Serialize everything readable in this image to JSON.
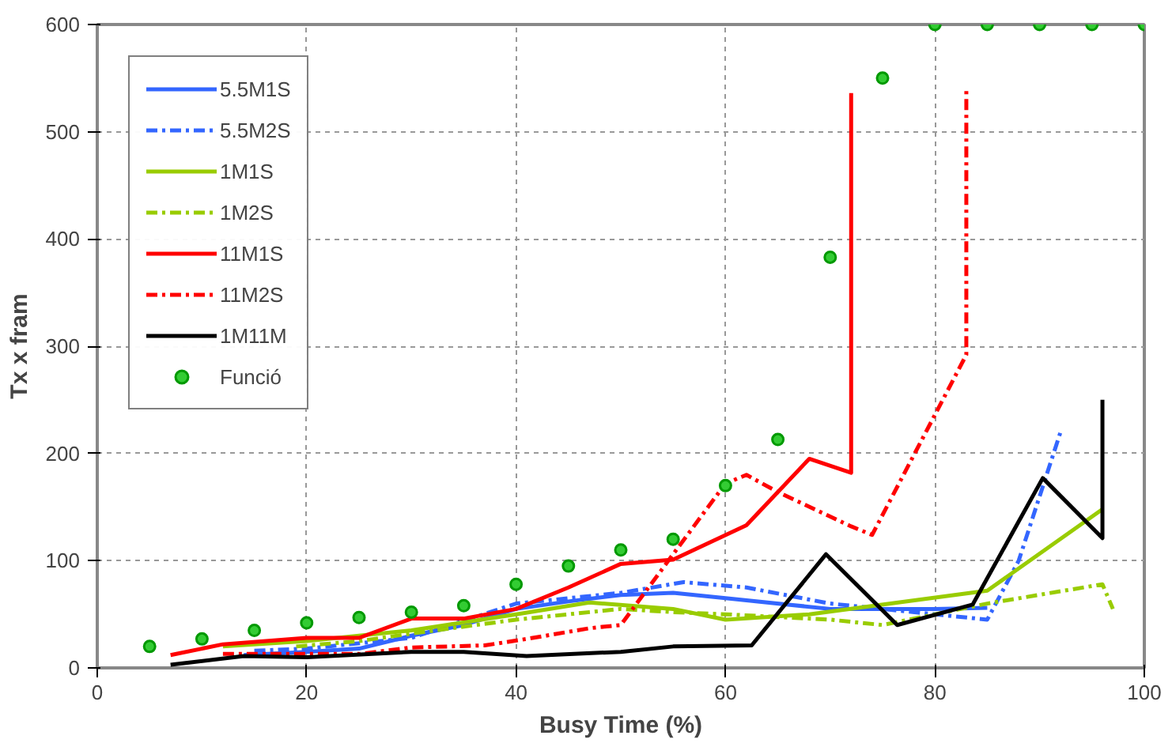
{
  "chart_data": {
    "type": "line",
    "xlabel": "Busy Time (%)",
    "ylabel": "Tx x fram",
    "xlim": [
      0,
      100
    ],
    "ylim": [
      0,
      600
    ],
    "xticks": [
      0,
      20,
      40,
      60,
      80,
      100
    ],
    "yticks": [
      0,
      100,
      200,
      300,
      400,
      500,
      600
    ],
    "grid": true,
    "legend": "top left",
    "series": [
      {
        "name": "5.5M1S",
        "color": "#3366ff",
        "line_style": "solid",
        "x": [
          14,
          20,
          25,
          30,
          35,
          40,
          45,
          50,
          55,
          60,
          70,
          80,
          85
        ],
        "values": [
          12,
          15,
          18,
          30,
          40,
          55,
          62,
          68,
          70,
          65,
          55,
          55,
          56
        ]
      },
      {
        "name": "5.5M2S",
        "color": "#3366ff",
        "line_style": "dashdot",
        "x": [
          15,
          20,
          30,
          40,
          50,
          56,
          62,
          70,
          80,
          85,
          88,
          92
        ],
        "values": [
          16,
          18,
          28,
          60,
          70,
          80,
          75,
          60,
          50,
          45,
          100,
          220
        ]
      },
      {
        "name": "1M1S",
        "color": "#99cc00",
        "line_style": "solid",
        "x": [
          12,
          20,
          30,
          40,
          47,
          55,
          60,
          68,
          85,
          96
        ],
        "values": [
          20,
          25,
          35,
          50,
          61,
          55,
          45,
          50,
          72,
          148
        ]
      },
      {
        "name": "1M2S",
        "color": "#99cc00",
        "line_style": "dashdot",
        "x": [
          19,
          25,
          30,
          40,
          50,
          55,
          60,
          70,
          75,
          85,
          96,
          97
        ],
        "values": [
          20,
          25,
          32,
          45,
          55,
          52,
          50,
          45,
          40,
          60,
          78,
          55
        ]
      },
      {
        "name": "11M1S",
        "color": "#ff0000",
        "line_style": "solid",
        "x": [
          7,
          12,
          20,
          25,
          30,
          35,
          40,
          45,
          50,
          55,
          62,
          68,
          72,
          72
        ],
        "values": [
          12,
          22,
          28,
          28,
          46,
          46,
          55,
          75,
          97,
          101,
          133,
          195,
          182,
          536
        ]
      },
      {
        "name": "11M2S",
        "color": "#ff0000",
        "line_style": "dashdot",
        "x": [
          12,
          25,
          30,
          37,
          41,
          47,
          50,
          60,
          62,
          65,
          72,
          74,
          83,
          83
        ],
        "values": [
          13,
          13,
          19,
          21,
          27,
          37,
          40,
          172,
          180,
          164,
          132,
          124,
          292,
          542
        ]
      },
      {
        "name": "1M11M",
        "color": "#000000",
        "line_style": "solid",
        "x": [
          7,
          14,
          20,
          30,
          35,
          41,
          50,
          55,
          62.5,
          69.6,
          76.4,
          83.6,
          90.3,
          96,
          96
        ],
        "values": [
          3,
          11,
          10,
          15,
          15,
          11,
          15,
          20,
          21,
          106,
          40,
          59,
          177,
          121,
          250
        ]
      },
      {
        "name": "Funció",
        "type": "scatter",
        "marker": "circle",
        "color": "#009900",
        "x": [
          5,
          10,
          15,
          20,
          25,
          30,
          35,
          40,
          45,
          50,
          55,
          60,
          65,
          70,
          75,
          80,
          85,
          90,
          95,
          100
        ],
        "values": [
          20,
          27,
          35,
          42,
          47,
          52,
          58,
          78,
          95,
          110,
          120,
          170,
          213,
          383,
          550,
          600,
          600,
          600,
          600,
          600
        ]
      }
    ]
  }
}
